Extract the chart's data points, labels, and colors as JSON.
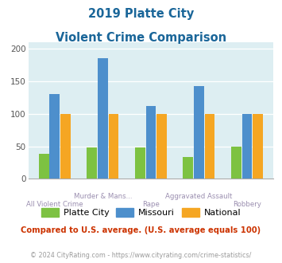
{
  "title_line1": "2019 Platte City",
  "title_line2": "Violent Crime Comparison",
  "platte_city": [
    38,
    48,
    48,
    33,
    50
  ],
  "missouri": [
    130,
    185,
    112,
    143,
    100
  ],
  "national": [
    100,
    100,
    100,
    100,
    100
  ],
  "bar_colors": {
    "platte_city": "#7dc242",
    "missouri": "#4d8fcc",
    "national": "#f5a623"
  },
  "tick_labels_top": [
    "",
    "Murder & Mans...",
    "",
    "Aggravated Assault",
    ""
  ],
  "tick_labels_bot": [
    "All Violent Crime",
    "",
    "Rape",
    "",
    "Robbery"
  ],
  "ylim": [
    0,
    210
  ],
  "yticks": [
    0,
    50,
    100,
    150,
    200
  ],
  "bg_color": "#ddeef2",
  "title_color": "#1a6699",
  "xlabel_color": "#9b8fb0",
  "note_text": "Compared to U.S. average. (U.S. average equals 100)",
  "note_color": "#cc3300",
  "footer_text": "© 2024 CityRating.com - https://www.cityrating.com/crime-statistics/",
  "footer_color": "#9b9b9b"
}
